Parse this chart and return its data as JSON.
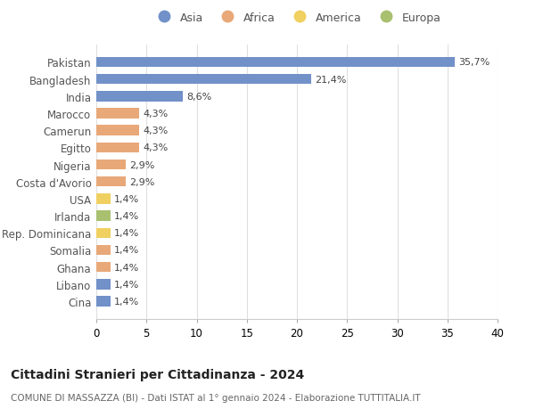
{
  "categories": [
    "Pakistan",
    "Bangladesh",
    "India",
    "Marocco",
    "Camerun",
    "Egitto",
    "Nigeria",
    "Costa d'Avorio",
    "USA",
    "Irlanda",
    "Rep. Dominicana",
    "Somalia",
    "Ghana",
    "Libano",
    "Cina"
  ],
  "values": [
    35.7,
    21.4,
    8.6,
    4.3,
    4.3,
    4.3,
    2.9,
    2.9,
    1.4,
    1.4,
    1.4,
    1.4,
    1.4,
    1.4,
    1.4
  ],
  "labels": [
    "35,7%",
    "21,4%",
    "8,6%",
    "4,3%",
    "4,3%",
    "4,3%",
    "2,9%",
    "2,9%",
    "1,4%",
    "1,4%",
    "1,4%",
    "1,4%",
    "1,4%",
    "1,4%",
    "1,4%"
  ],
  "continents": [
    "Asia",
    "Asia",
    "Asia",
    "Africa",
    "Africa",
    "Africa",
    "Africa",
    "Africa",
    "America",
    "Europa",
    "America",
    "Africa",
    "Africa",
    "Asia",
    "Asia"
  ],
  "colors": {
    "Asia": "#7191C8",
    "Africa": "#E8A878",
    "America": "#F0D060",
    "Europa": "#A8C070"
  },
  "xlim": [
    0,
    40
  ],
  "xticks": [
    0,
    5,
    10,
    15,
    20,
    25,
    30,
    35,
    40
  ],
  "title": "Cittadini Stranieri per Cittadinanza - 2024",
  "subtitle": "COMUNE DI MASSAZZA (BI) - Dati ISTAT al 1° gennaio 2024 - Elaborazione TUTTITALIA.IT",
  "background_color": "#ffffff",
  "grid_color": "#e0e0e0",
  "bar_height": 0.6
}
